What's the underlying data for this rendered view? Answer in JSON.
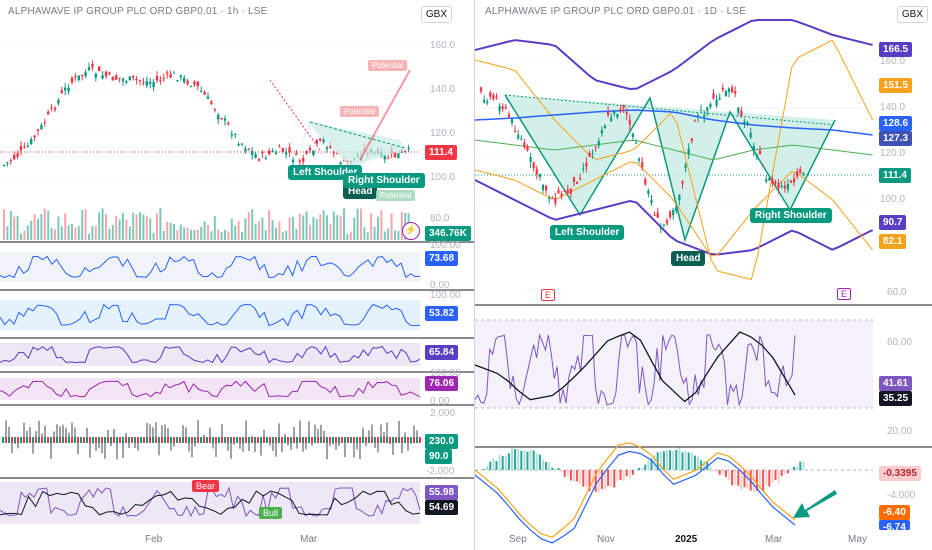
{
  "left": {
    "title": "ALPHAWAVE IP GROUP PLC ORD GBP0.01 · 1h · LSE",
    "currency": "GBX",
    "price_axis": [
      "160.0",
      "140.0",
      "120.0",
      "100.0",
      "80.0"
    ],
    "last_price": "111.4",
    "volume_value": "346.76K",
    "rsi_axis": [
      "100.00",
      "0.00"
    ],
    "rsi_value": "73.68",
    "stoch_axis": [
      "100.00"
    ],
    "stoch_value": "53.82",
    "ind3_value": "65.84",
    "ind4_axis": [
      "100.00",
      "0.00"
    ],
    "ind4_value": "76.06",
    "osc_axis": [
      "2,000",
      "-2,000"
    ],
    "osc_value_top": "230.0",
    "osc_value_bottom": "90.0",
    "wt_value_top": "55.98",
    "wt_value_bottom": "54.69",
    "x_labels": [
      "Feb",
      "Mar"
    ],
    "patterns": {
      "left_shoulder": "Left Shoulder",
      "head": "Head",
      "right_shoulder": "Right Shoulder"
    },
    "signals": {
      "bear": "Bear",
      "bull": "Bull"
    },
    "overlay_labels": [
      "Potential",
      "Potential",
      "Potential"
    ],
    "lightning_icon": "lightning-icon"
  },
  "right": {
    "title": "ALPHAWAVE IP GROUP PLC ORD GBP0.01 · 1D · LSE",
    "currency": "GBX",
    "price_axis": [
      "160.0",
      "140.0",
      "120.0",
      "100.0"
    ],
    "price_tags": {
      "upper_band": "166.5",
      "orange_upper": "151.5",
      "ma1": "128.6",
      "ma2": "127.3",
      "last": "111.4",
      "lower_band": "90.7",
      "orange_lower": "82.1"
    },
    "rsi_axis": [
      "60.0",
      "60.00",
      "20.00"
    ],
    "rsi_values": {
      "rsi": "41.61",
      "signal": "35.25"
    },
    "macd_axis": [
      "-4.000"
    ],
    "macd_values": {
      "hist": "-0.3395",
      "macd": "-6.40",
      "signal": "-6.74"
    },
    "x_labels": [
      "Sep",
      "Nov",
      "2025",
      "Mar",
      "May"
    ],
    "patterns": {
      "left_shoulder": "Left Shoulder",
      "head": "Head",
      "right_shoulder": "Right Shoulder"
    },
    "earnings": [
      "E",
      "E"
    ]
  },
  "colors": {
    "up": "#089981",
    "down": "#f23645",
    "pattern_fill": "#c8ebe4",
    "band": "#5b3cc4",
    "orange": "#f7a21b",
    "blue_ma": "#2962ff",
    "green_ma": "#4caf50",
    "rsi_purple": "#7e57c2"
  }
}
